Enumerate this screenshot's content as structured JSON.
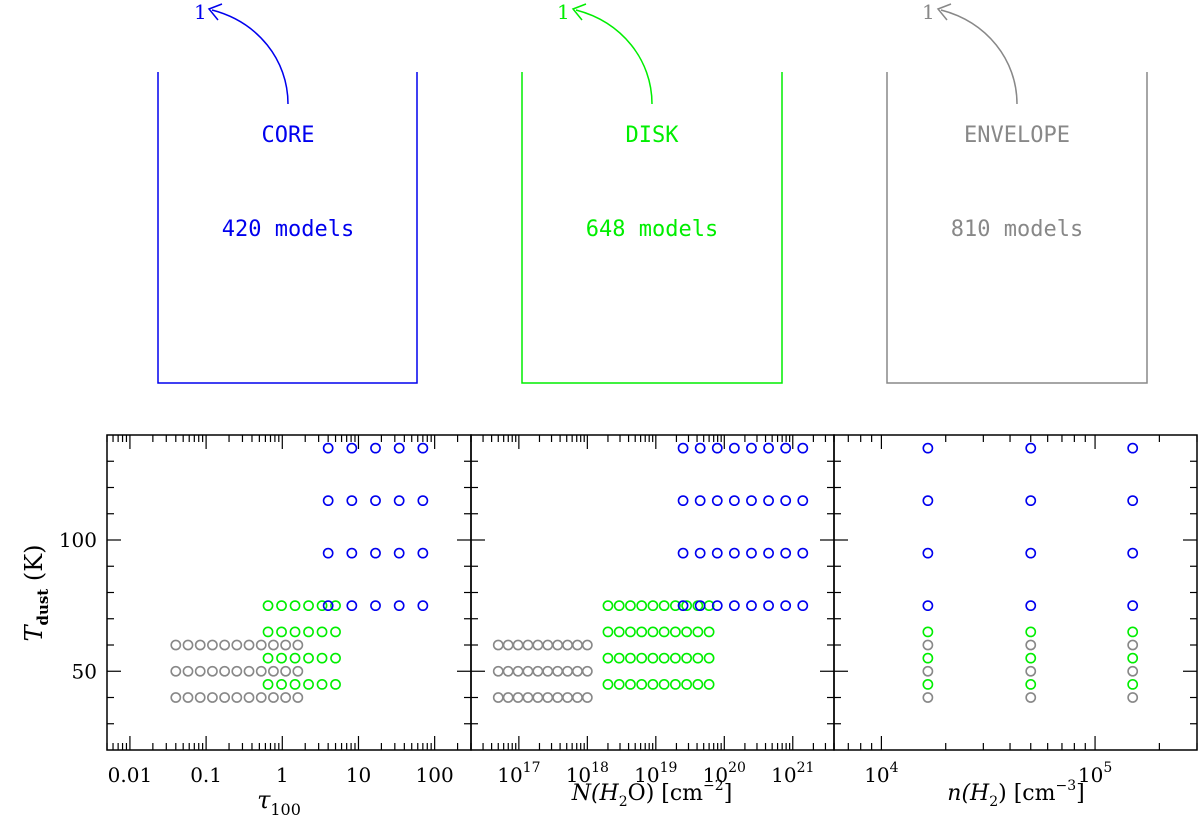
{
  "bins": [
    {
      "name": "CORE",
      "models": "420 models",
      "arrow_label": "1",
      "color": "#0000ee"
    },
    {
      "name": "DISK",
      "models": "648 models",
      "arrow_label": "1",
      "color": "#00ee00"
    },
    {
      "name": "ENVELOPE",
      "models": "810 models",
      "arrow_label": "1",
      "color": "#888888"
    }
  ],
  "chart_data": {
    "type": "scatter",
    "shared_y": {
      "label": "T",
      "label_sub": "dust",
      "label_unit": "(K)",
      "ylim": [
        20,
        140
      ],
      "ticks": [
        50,
        100
      ]
    },
    "panels": [
      {
        "id": "tau",
        "xscale": "log",
        "xlim": [
          0.005,
          300
        ],
        "xlabel": "τ",
        "xlabel_sub": "100",
        "tick_labels": [
          {
            "v": 0.01,
            "t": "0.01"
          },
          {
            "v": 0.1,
            "t": "0.1"
          },
          {
            "v": 1,
            "t": "1"
          },
          {
            "v": 10,
            "t": "10"
          },
          {
            "v": 100,
            "t": "100"
          }
        ],
        "series": [
          {
            "name": "ENVELOPE",
            "color": "#888888",
            "x_range": [
              0.04,
              1.6
            ],
            "count": 11,
            "y": [
              40,
              50,
              60
            ]
          },
          {
            "name": "DISK",
            "color": "#00ee00",
            "x_range": [
              0.65,
              5
            ],
            "count": 6,
            "y": [
              45,
              55,
              65,
              75
            ]
          },
          {
            "name": "CORE",
            "color": "#0000ee",
            "x_range": [
              4,
              70
            ],
            "count": 5,
            "y": [
              75,
              95,
              115,
              135
            ]
          }
        ]
      },
      {
        "id": "nh2o",
        "xscale": "log",
        "xlim": [
          2e+16,
          4e+21
        ],
        "xlabel": "N(H",
        "xlabel_tail": "O)  [cm",
        "xlabel_sup": "−2",
        "xlabel_end": "]",
        "tick_labels": [
          {
            "v": 1e+17,
            "base": "10",
            "exp": "17"
          },
          {
            "v": 1e+18,
            "base": "10",
            "exp": "18"
          },
          {
            "v": 1e+19,
            "base": "10",
            "exp": "19"
          },
          {
            "v": 1e+20,
            "base": "10",
            "exp": "20"
          },
          {
            "v": 1e+21,
            "base": "10",
            "exp": "21"
          }
        ],
        "series": [
          {
            "name": "ENVELOPE",
            "color": "#888888",
            "x_range": [
              5e+16,
              1e+18
            ],
            "count": 10,
            "y": [
              40,
              50,
              60
            ]
          },
          {
            "name": "DISK",
            "color": "#00ee00",
            "x_range": [
              2e+18,
              6e+19
            ],
            "count": 10,
            "y": [
              45,
              55,
              65,
              75
            ]
          },
          {
            "name": "CORE",
            "color": "#0000ee",
            "x_range": [
              2.5e+19,
              1.4e+21
            ],
            "count": 8,
            "y": [
              75,
              95,
              115,
              135
            ]
          }
        ]
      },
      {
        "id": "nh2",
        "xscale": "log",
        "xlim": [
          6000,
          300000
        ],
        "xlabel": "n(H",
        "xlabel_tail": ")  [cm",
        "xlabel_sup": "−3",
        "xlabel_end": "]",
        "tick_labels": [
          {
            "v": 10000,
            "base": "10",
            "exp": "4"
          },
          {
            "v": 100000,
            "base": "10",
            "exp": "5"
          }
        ],
        "columns_x": [
          16500,
          50000,
          150000
        ],
        "series": [
          {
            "name": "ENVELOPE",
            "color": "#888888",
            "y": [
              40,
              50,
              60
            ]
          },
          {
            "name": "DISK",
            "color": "#00ee00",
            "y": [
              45,
              55,
              65
            ]
          },
          {
            "name": "CORE",
            "color": "#0000ee",
            "y": [
              75,
              95,
              115,
              135
            ]
          }
        ]
      }
    ]
  }
}
